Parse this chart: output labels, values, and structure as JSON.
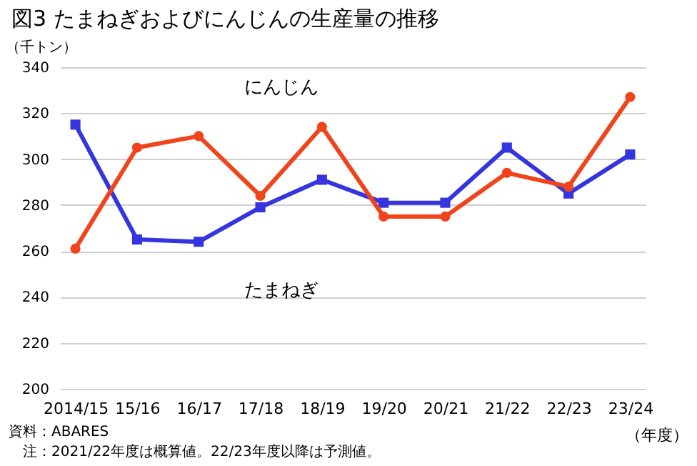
{
  "chart_data": {
    "type": "line",
    "title": "図3 たまねぎおよびにんじんの生産量の推移",
    "ylabel": "（千トン）",
    "xlabel": "（年度）",
    "categories": [
      "2014/15",
      "15/16",
      "16/17",
      "17/18",
      "18/19",
      "19/20",
      "20/21",
      "21/22",
      "22/23",
      "23/24"
    ],
    "series": [
      {
        "name": "たまねぎ",
        "color": "#3535e0",
        "marker": "square",
        "values": [
          315,
          265,
          264,
          279,
          291,
          281,
          281,
          305,
          285,
          302
        ]
      },
      {
        "name": "にんじん",
        "color": "#f0441c",
        "marker": "circle",
        "values": [
          261,
          305,
          310,
          284,
          314,
          275,
          275,
          294,
          288,
          327
        ]
      }
    ],
    "ylim": [
      200,
      340
    ],
    "yticks": [
      200,
      220,
      240,
      260,
      280,
      300,
      320,
      340
    ],
    "grid": "y",
    "legend": false,
    "annotations": [
      "資料：ABARES",
      "注：2021/22年度は概算値。22/23年度以降は予測値。"
    ]
  }
}
